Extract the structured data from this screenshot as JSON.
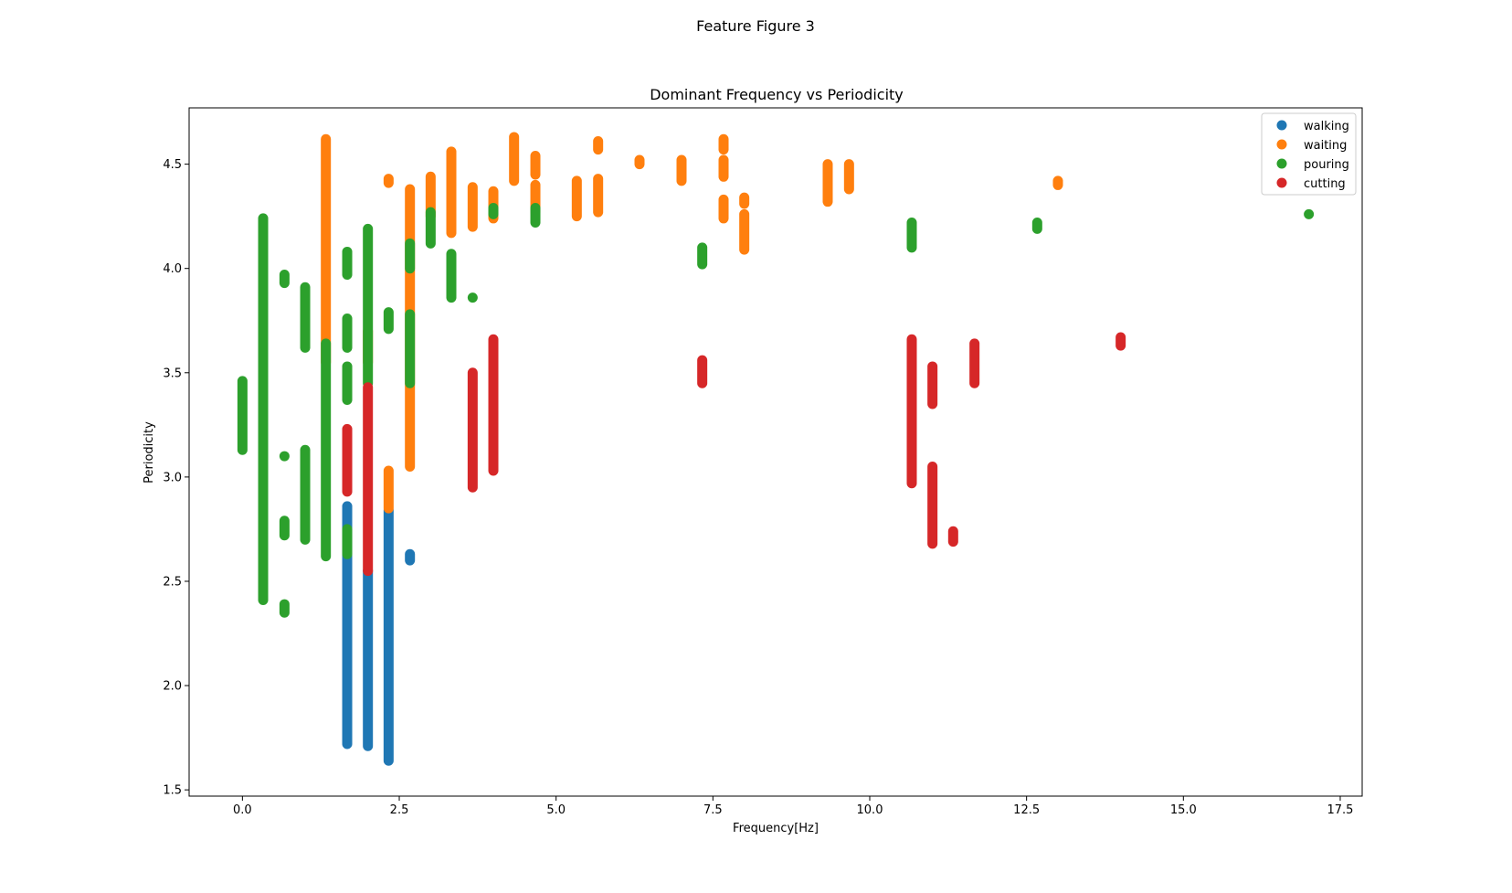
{
  "suptitle": "Feature Figure 3",
  "chart_data": {
    "type": "scatter",
    "title": "Dominant Frequency vs Periodicity",
    "xlabel": "Frequency[Hz]",
    "ylabel": "Periodicity",
    "xlim": [
      -0.85,
      17.85
    ],
    "ylim": [
      1.47,
      4.77
    ],
    "xticks": [
      0.0,
      2.5,
      5.0,
      7.5,
      10.0,
      12.5,
      15.0,
      17.5
    ],
    "xtick_labels": [
      "0.0",
      "2.5",
      "5.0",
      "7.5",
      "10.0",
      "12.5",
      "15.0",
      "17.5"
    ],
    "yticks": [
      1.5,
      2.0,
      2.5,
      3.0,
      3.5,
      4.0,
      4.5
    ],
    "ytick_labels": [
      "1.5",
      "2.0",
      "2.5",
      "3.0",
      "3.5",
      "4.0",
      "4.5"
    ],
    "grid": false,
    "legend_position": "top-right",
    "series": [
      {
        "name": "walking",
        "color": "#1f77b4",
        "clusters": [
          {
            "x": 1.67,
            "y_min": 1.72,
            "y_max": 2.86
          },
          {
            "x": 2.0,
            "y_min": 1.71,
            "y_max": 2.55
          },
          {
            "x": 2.33,
            "y_min": 1.64,
            "y_max": 2.84
          },
          {
            "x": 2.67,
            "y_min": 2.6,
            "y_max": 2.63
          }
        ]
      },
      {
        "name": "waiting",
        "color": "#ff7f0e",
        "clusters": [
          {
            "x": 1.33,
            "y_min": 3.55,
            "y_max": 4.62
          },
          {
            "x": 2.0,
            "y_min": 3.55,
            "y_max": 3.7
          },
          {
            "x": 2.33,
            "y_min": 2.85,
            "y_max": 3.03
          },
          {
            "x": 2.33,
            "y_min": 4.41,
            "y_max": 4.43
          },
          {
            "x": 2.67,
            "y_min": 3.05,
            "y_max": 4.38
          },
          {
            "x": 3.0,
            "y_min": 4.25,
            "y_max": 4.44
          },
          {
            "x": 3.33,
            "y_min": 4.17,
            "y_max": 4.56
          },
          {
            "x": 3.67,
            "y_min": 4.2,
            "y_max": 4.39
          },
          {
            "x": 4.0,
            "y_min": 4.24,
            "y_max": 4.37
          },
          {
            "x": 4.33,
            "y_min": 4.42,
            "y_max": 4.63
          },
          {
            "x": 4.67,
            "y_min": 4.45,
            "y_max": 4.54
          },
          {
            "x": 4.67,
            "y_min": 4.27,
            "y_max": 4.4
          },
          {
            "x": 5.33,
            "y_min": 4.25,
            "y_max": 4.42
          },
          {
            "x": 5.67,
            "y_min": 4.27,
            "y_max": 4.43
          },
          {
            "x": 5.67,
            "y_min": 4.57,
            "y_max": 4.61
          },
          {
            "x": 6.33,
            "y_min": 4.5,
            "y_max": 4.52
          },
          {
            "x": 7.0,
            "y_min": 4.42,
            "y_max": 4.52
          },
          {
            "x": 7.67,
            "y_min": 4.44,
            "y_max": 4.52
          },
          {
            "x": 7.67,
            "y_min": 4.57,
            "y_max": 4.62
          },
          {
            "x": 7.67,
            "y_min": 4.24,
            "y_max": 4.33
          },
          {
            "x": 8.0,
            "y_min": 4.09,
            "y_max": 4.26
          },
          {
            "x": 8.0,
            "y_min": 4.31,
            "y_max": 4.34
          },
          {
            "x": 9.33,
            "y_min": 4.32,
            "y_max": 4.5
          },
          {
            "x": 9.67,
            "y_min": 4.38,
            "y_max": 4.5
          },
          {
            "x": 13.0,
            "y_min": 4.4,
            "y_max": 4.42
          }
        ]
      },
      {
        "name": "pouring",
        "color": "#2ca02c",
        "clusters": [
          {
            "x": 0.0,
            "y_min": 3.13,
            "y_max": 3.46
          },
          {
            "x": 0.33,
            "y_min": 2.41,
            "y_max": 4.24
          },
          {
            "x": 0.67,
            "y_min": 3.93,
            "y_max": 3.97
          },
          {
            "x": 0.67,
            "y_min": 3.1,
            "y_max": 3.1
          },
          {
            "x": 0.67,
            "y_min": 2.72,
            "y_max": 2.79
          },
          {
            "x": 0.67,
            "y_min": 2.35,
            "y_max": 2.39
          },
          {
            "x": 1.0,
            "y_min": 3.62,
            "y_max": 3.91
          },
          {
            "x": 1.0,
            "y_min": 2.7,
            "y_max": 3.13
          },
          {
            "x": 1.33,
            "y_min": 2.62,
            "y_max": 3.64
          },
          {
            "x": 1.67,
            "y_min": 3.97,
            "y_max": 4.08
          },
          {
            "x": 1.67,
            "y_min": 3.62,
            "y_max": 3.76
          },
          {
            "x": 1.67,
            "y_min": 3.37,
            "y_max": 3.53
          },
          {
            "x": 1.67,
            "y_min": 2.63,
            "y_max": 2.75
          },
          {
            "x": 2.0,
            "y_min": 3.45,
            "y_max": 4.19
          },
          {
            "x": 2.33,
            "y_min": 3.71,
            "y_max": 3.79
          },
          {
            "x": 2.67,
            "y_min": 3.45,
            "y_max": 3.78
          },
          {
            "x": 2.67,
            "y_min": 4.0,
            "y_max": 4.12
          },
          {
            "x": 3.0,
            "y_min": 4.12,
            "y_max": 4.27
          },
          {
            "x": 3.33,
            "y_min": 3.86,
            "y_max": 4.07
          },
          {
            "x": 3.67,
            "y_min": 3.86,
            "y_max": 3.86
          },
          {
            "x": 4.0,
            "y_min": 4.26,
            "y_max": 4.29
          },
          {
            "x": 4.67,
            "y_min": 4.22,
            "y_max": 4.29
          },
          {
            "x": 7.33,
            "y_min": 4.02,
            "y_max": 4.1
          },
          {
            "x": 10.67,
            "y_min": 4.1,
            "y_max": 4.22
          },
          {
            "x": 12.67,
            "y_min": 4.19,
            "y_max": 4.22
          },
          {
            "x": 17.0,
            "y_min": 4.26,
            "y_max": 4.26
          }
        ]
      },
      {
        "name": "cutting",
        "color": "#d62728",
        "clusters": [
          {
            "x": 1.67,
            "y_min": 2.93,
            "y_max": 3.23
          },
          {
            "x": 2.0,
            "y_min": 2.55,
            "y_max": 3.43
          },
          {
            "x": 3.67,
            "y_min": 2.95,
            "y_max": 3.5
          },
          {
            "x": 4.0,
            "y_min": 3.03,
            "y_max": 3.66
          },
          {
            "x": 7.33,
            "y_min": 3.45,
            "y_max": 3.56
          },
          {
            "x": 10.67,
            "y_min": 2.97,
            "y_max": 3.66
          },
          {
            "x": 11.0,
            "y_min": 3.35,
            "y_max": 3.53
          },
          {
            "x": 11.0,
            "y_min": 2.68,
            "y_max": 3.05
          },
          {
            "x": 11.33,
            "y_min": 2.69,
            "y_max": 2.74
          },
          {
            "x": 11.67,
            "y_min": 3.45,
            "y_max": 3.64
          },
          {
            "x": 14.0,
            "y_min": 3.63,
            "y_max": 3.67
          }
        ]
      }
    ]
  }
}
